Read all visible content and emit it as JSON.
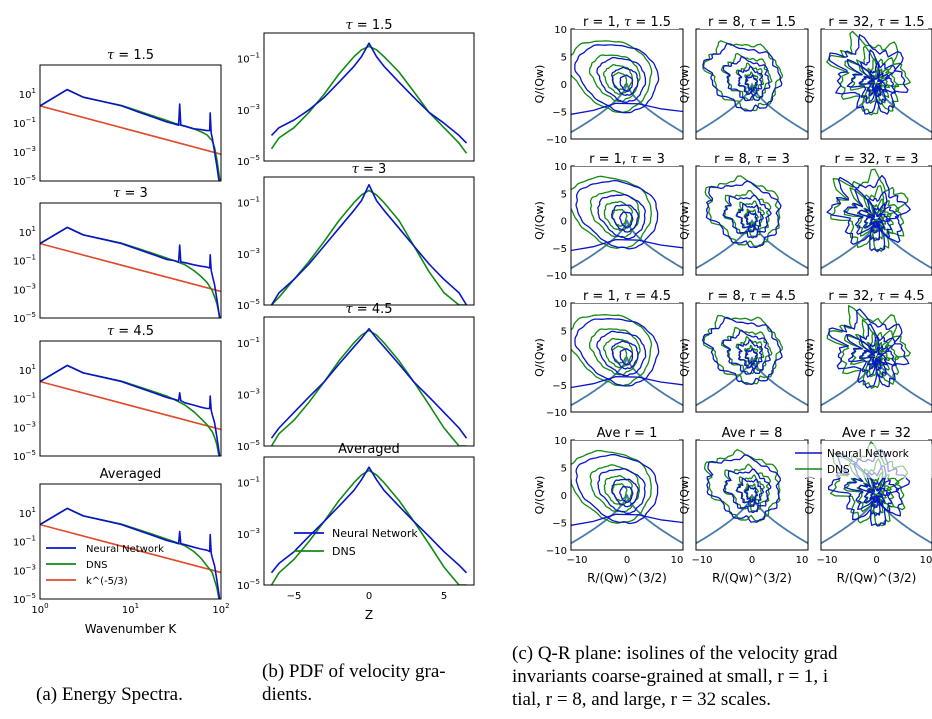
{
  "captions": {
    "a": "(a) Energy Spectra.",
    "b_line1": "(b) PDF of velocity gra-",
    "b_line2": "dients.",
    "c_line1": "(c) Q-R plane: isolines of the velocity grad",
    "c_line2": "invariants coarse-grained at small, r = 1, i",
    "c_line3": "tial, r = 8, and large, r = 32 scales."
  },
  "colors": {
    "neural_network": "#0a14c8",
    "dns": "#138a13",
    "kolmogorov": "#e0492a",
    "vieillefosse": "#4a7ba8"
  },
  "chart_data": [
    {
      "id": "energy-spectra",
      "type": "line",
      "xscale": "log",
      "yscale": "log",
      "xlim": [
        1,
        100
      ],
      "ylim": [
        1e-05,
        1000
      ],
      "xlabel": "Wavenumber K",
      "xticks": [
        "10^0",
        "10^1",
        "10^2"
      ],
      "yticks": [
        "10^-5",
        "10^-3",
        "10^-1",
        "10^1"
      ],
      "legend": {
        "placement": "lower-left",
        "panel": 3,
        "entries": [
          "Neural Network",
          "DNS",
          "k^(-5/3)"
        ]
      },
      "panels": [
        {
          "title": "τ = 1.5",
          "series": [
            {
              "name": "Neural Network",
              "x": [
                1,
                2,
                3,
                5,
                8,
                12,
                18,
                25,
                30,
                34,
                35,
                36,
                40,
                50,
                60,
                70,
                75,
                76,
                78,
                80,
                85,
                90,
                95,
                100
              ],
              "y": [
                1.5,
                20,
                6,
                3,
                1.5,
                0.6,
                0.25,
                0.12,
                0.09,
                0.07,
                2,
                0.07,
                0.06,
                0.04,
                0.035,
                0.03,
                0.03,
                0.5,
                0.02,
                0.01,
                0.001,
                0.0001,
                1e-05,
                1e-06
              ]
            },
            {
              "name": "DNS",
              "x": [
                1,
                2,
                3,
                5,
                8,
                12,
                18,
                25,
                30,
                40,
                50,
                60,
                70,
                80,
                85,
                90,
                95,
                100
              ],
              "y": [
                1.5,
                20,
                6,
                3,
                1.6,
                0.7,
                0.3,
                0.15,
                0.1,
                0.06,
                0.04,
                0.025,
                0.015,
                0.006,
                0.002,
                0.0003,
                3e-05,
                3e-06
              ]
            },
            {
              "name": "k^(-5/3)",
              "x": [
                1,
                100
              ],
              "y": [
                1.5,
                0.0007
              ]
            }
          ]
        },
        {
          "title": "τ = 3",
          "series": [
            {
              "name": "Neural Network",
              "x": [
                1,
                2,
                3,
                5,
                8,
                12,
                18,
                25,
                30,
                34,
                35,
                36,
                40,
                50,
                60,
                70,
                75,
                76,
                78,
                80,
                85,
                90,
                95,
                100
              ],
              "y": [
                1.5,
                20,
                6,
                3,
                1.5,
                0.6,
                0.25,
                0.12,
                0.1,
                0.08,
                1.2,
                0.08,
                0.07,
                0.05,
                0.04,
                0.035,
                0.03,
                0.25,
                0.02,
                0.01,
                0.002,
                0.0002,
                2e-05,
                2e-06
              ]
            },
            {
              "name": "DNS",
              "x": [
                1,
                2,
                3,
                5,
                8,
                12,
                18,
                25,
                30,
                40,
                50,
                60,
                70,
                80,
                85,
                90,
                95,
                100
              ],
              "y": [
                1.5,
                20,
                6,
                3,
                1.6,
                0.7,
                0.3,
                0.15,
                0.1,
                0.05,
                0.02,
                0.008,
                0.003,
                0.0008,
                0.0003,
                0.0001,
                2e-05,
                3e-06
              ]
            },
            {
              "name": "k^(-5/3)",
              "x": [
                1,
                100
              ],
              "y": [
                1.5,
                0.0007
              ]
            }
          ]
        },
        {
          "title": "τ = 4.5",
          "series": [
            {
              "name": "Neural Network",
              "x": [
                1,
                2,
                3,
                5,
                8,
                12,
                18,
                25,
                30,
                34,
                35,
                36,
                40,
                50,
                60,
                70,
                75,
                76,
                78,
                80,
                85,
                90,
                95,
                100
              ],
              "y": [
                1.5,
                20,
                6,
                3,
                1.5,
                0.6,
                0.25,
                0.12,
                0.09,
                0.07,
                0.25,
                0.07,
                0.05,
                0.035,
                0.025,
                0.02,
                0.02,
                0.15,
                0.015,
                0.008,
                0.002,
                0.0002,
                2e-05,
                2e-06
              ]
            },
            {
              "name": "DNS",
              "x": [
                1,
                2,
                3,
                5,
                8,
                12,
                18,
                25,
                30,
                40,
                50,
                60,
                70,
                80,
                85,
                90,
                95,
                100
              ],
              "y": [
                1.5,
                20,
                6,
                3,
                1.6,
                0.7,
                0.3,
                0.15,
                0.09,
                0.035,
                0.012,
                0.004,
                0.0015,
                0.0005,
                0.0002,
                6e-05,
                1e-05,
                2e-06
              ]
            },
            {
              "name": "k^(-5/3)",
              "x": [
                1,
                100
              ],
              "y": [
                1.5,
                0.0007
              ]
            }
          ]
        },
        {
          "title": "Averaged",
          "series": [
            {
              "name": "Neural Network",
              "x": [
                1,
                2,
                3,
                5,
                8,
                12,
                18,
                25,
                30,
                34,
                35,
                36,
                40,
                50,
                60,
                70,
                75,
                76,
                78,
                80,
                85,
                90,
                95,
                100
              ],
              "y": [
                1.5,
                20,
                6,
                3,
                1.5,
                0.6,
                0.25,
                0.12,
                0.09,
                0.07,
                0.5,
                0.07,
                0.06,
                0.04,
                0.03,
                0.025,
                0.02,
                0.3,
                0.015,
                0.008,
                0.002,
                0.0002,
                2e-05,
                2e-06
              ]
            },
            {
              "name": "DNS",
              "x": [
                1,
                2,
                3,
                5,
                8,
                12,
                18,
                25,
                30,
                40,
                50,
                60,
                70,
                80,
                85,
                90,
                95,
                100
              ],
              "y": [
                1.5,
                20,
                6,
                3,
                1.6,
                0.7,
                0.3,
                0.15,
                0.1,
                0.05,
                0.02,
                0.007,
                0.002,
                0.0007,
                0.0002,
                6e-05,
                1e-05,
                2e-06
              ]
            },
            {
              "name": "k^(-5/3)",
              "x": [
                1,
                100
              ],
              "y": [
                1.5,
                0.0007
              ]
            }
          ]
        }
      ]
    },
    {
      "id": "pdf-velocity-gradients",
      "type": "line",
      "yscale": "log",
      "xlim": [
        -7,
        7
      ],
      "ylim": [
        1e-05,
        1
      ],
      "xlabel": "Z",
      "xticks": [
        "-5",
        "0",
        "5"
      ],
      "yticks": [
        "10^-5",
        "10^-3",
        "10^-1"
      ],
      "legend": {
        "placement": "lower-center",
        "panel": 3,
        "entries": [
          "Neural Network",
          "DNS"
        ]
      },
      "panels": [
        {
          "title": "τ = 1.5",
          "series": [
            {
              "name": "Neural Network",
              "x": [
                -6.5,
                -6,
                -5,
                -4,
                -3,
                -2,
                -1,
                -0.5,
                0,
                0.5,
                1,
                2,
                3,
                4,
                5,
                6,
                6.5
              ],
              "y": [
                0.0001,
                0.0002,
                0.0004,
                0.001,
                0.003,
                0.012,
                0.05,
                0.12,
                0.4,
                0.12,
                0.05,
                0.012,
                0.003,
                0.0008,
                0.0003,
                0.0001,
                5e-05
              ]
            },
            {
              "name": "DNS",
              "x": [
                -6.5,
                -6,
                -5,
                -4,
                -3,
                -2,
                -1,
                -0.5,
                0,
                0.5,
                1,
                2,
                3,
                4,
                5,
                6,
                6.5
              ],
              "y": [
                3e-05,
                8e-05,
                0.0002,
                0.0008,
                0.004,
                0.025,
                0.12,
                0.22,
                0.3,
                0.22,
                0.12,
                0.03,
                0.005,
                0.0008,
                0.0002,
                5e-05,
                2e-05
              ]
            }
          ]
        },
        {
          "title": "τ = 3",
          "series": [
            {
              "name": "Neural Network",
              "x": [
                -6.5,
                -6,
                -5,
                -4,
                -3,
                -2,
                -1,
                -0.5,
                0,
                0.5,
                1,
                2,
                3,
                4,
                5,
                6,
                6.5
              ],
              "y": [
                1e-05,
                3e-05,
                0.0001,
                0.0004,
                0.002,
                0.01,
                0.05,
                0.12,
                0.5,
                0.12,
                0.05,
                0.01,
                0.002,
                0.0004,
                0.0001,
                3e-05,
                1e-05
              ]
            },
            {
              "name": "DNS",
              "x": [
                -6.5,
                -6,
                -5,
                -4,
                -3,
                -2,
                -1,
                -0.5,
                0,
                0.5,
                1,
                2,
                3,
                4,
                5,
                6,
                6.5
              ],
              "y": [
                1e-05,
                2e-05,
                0.0001,
                0.0005,
                0.003,
                0.02,
                0.1,
                0.2,
                0.3,
                0.2,
                0.1,
                0.02,
                0.002,
                0.0002,
                3e-05,
                1e-05,
                1e-05
              ]
            }
          ]
        },
        {
          "title": "τ = 4.5",
          "series": [
            {
              "name": "Neural Network",
              "x": [
                -6.5,
                -6,
                -5,
                -4,
                -3,
                -2,
                -1,
                -0.5,
                0,
                0.5,
                1,
                2,
                3,
                4,
                5,
                6,
                6.5
              ],
              "y": [
                2e-05,
                5e-05,
                0.0002,
                0.0008,
                0.003,
                0.015,
                0.07,
                0.15,
                0.35,
                0.15,
                0.07,
                0.015,
                0.003,
                0.0008,
                0.0002,
                5e-05,
                2e-05
              ]
            },
            {
              "name": "DNS",
              "x": [
                -6.5,
                -6,
                -5,
                -4,
                -3,
                -2,
                -1,
                -0.5,
                0,
                0.5,
                1,
                2,
                3,
                4,
                5,
                6,
                6.5
              ],
              "y": [
                1e-05,
                3e-05,
                0.0001,
                0.0005,
                0.003,
                0.02,
                0.1,
                0.2,
                0.3,
                0.2,
                0.1,
                0.02,
                0.003,
                0.0004,
                5e-05,
                1e-05,
                1e-05
              ]
            }
          ]
        },
        {
          "title": "Averaged",
          "series": [
            {
              "name": "Neural Network",
              "x": [
                -6.5,
                -6,
                -5,
                -4,
                -3,
                -2,
                -1,
                -0.5,
                0,
                0.5,
                1,
                2,
                3,
                4,
                5,
                6,
                6.5
              ],
              "y": [
                3e-05,
                7e-05,
                0.0002,
                0.0008,
                0.003,
                0.012,
                0.05,
                0.13,
                0.4,
                0.13,
                0.05,
                0.012,
                0.003,
                0.0008,
                0.0002,
                6e-05,
                3e-05
              ]
            },
            {
              "name": "DNS",
              "x": [
                -6.5,
                -6,
                -5,
                -4,
                -3,
                -2,
                -1,
                -0.5,
                0,
                0.5,
                1,
                2,
                3,
                4,
                5,
                6,
                6.5
              ],
              "y": [
                1e-05,
                3e-05,
                0.0001,
                0.0005,
                0.003,
                0.02,
                0.1,
                0.2,
                0.3,
                0.2,
                0.1,
                0.02,
                0.003,
                0.0004,
                5e-05,
                1e-05,
                1e-05
              ]
            }
          ]
        }
      ]
    },
    {
      "id": "qr-plane",
      "type": "line",
      "xlim": [
        -10,
        10
      ],
      "ylim": [
        -10,
        10
      ],
      "xlabel": "R/(Qw)^(3/2)",
      "ylabel": "Q/(Qw)",
      "xticks": [
        "-10",
        "0",
        "10"
      ],
      "yticks": [
        "-10",
        "-5",
        "0",
        "5",
        "10"
      ],
      "legend": {
        "placement": "top-right",
        "panel": "r4c3",
        "entries": [
          "Neural Network",
          "DNS"
        ]
      },
      "column_scales": [
        1,
        8,
        32
      ],
      "titles": [
        [
          "r = 1, τ = 1.5",
          "r = 8, τ = 1.5",
          "r = 32, τ = 1.5"
        ],
        [
          "r = 1, τ = 3",
          "r = 8, τ = 3",
          "r = 32, τ = 3"
        ],
        [
          "r = 1, τ = 4.5",
          "r = 8, τ = 4.5",
          "r = 32, τ = 4.5"
        ],
        [
          "Ave r = 1",
          "Ave r = 8",
          "Ave r = 32"
        ]
      ]
    }
  ]
}
